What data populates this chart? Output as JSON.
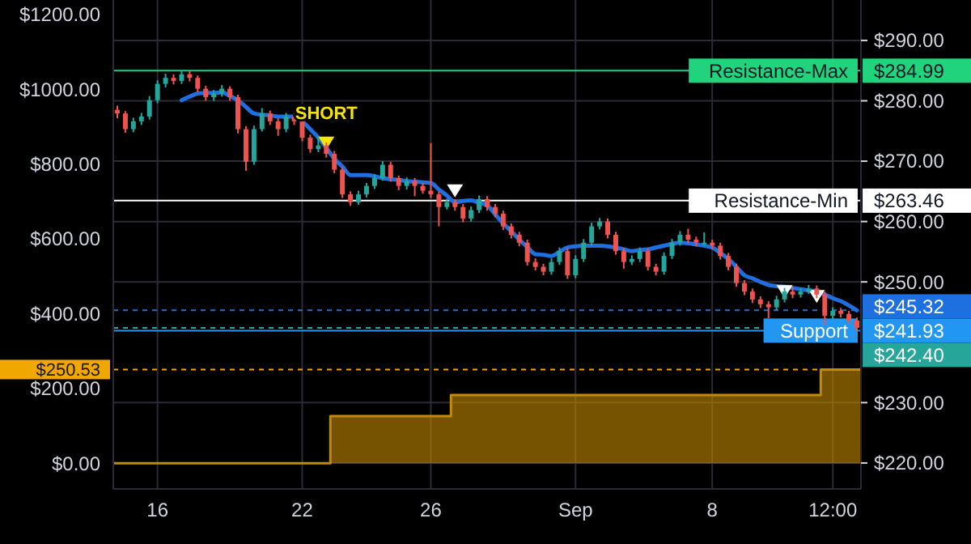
{
  "chart_data": {
    "type": "candlestick",
    "grid": true,
    "categories": [
      null,
      null,
      null,
      null,
      null,
      "16",
      null,
      null,
      null,
      null,
      null,
      null,
      null,
      null,
      null,
      null,
      null,
      null,
      null,
      null,
      null,
      null,
      null,
      "22",
      null,
      null,
      null,
      null,
      null,
      null,
      null,
      null,
      null,
      null,
      null,
      null,
      null,
      null,
      null,
      "26",
      null,
      null,
      null,
      null,
      null,
      null,
      null,
      null,
      null,
      null,
      null,
      null,
      null,
      null,
      null,
      null,
      null,
      "Sep",
      null,
      null,
      null,
      null,
      null,
      null,
      null,
      null,
      null,
      null,
      null,
      null,
      null,
      null,
      null,
      null,
      "8",
      null,
      null,
      null,
      null,
      null,
      null,
      null,
      null,
      null,
      null,
      null,
      null,
      null,
      null,
      "12:00",
      null,
      null,
      null
    ],
    "ylim": [
      215.7,
      296.7
    ],
    "yticks": [
      {
        "value": 220,
        "label": "$220.00"
      },
      {
        "value": 230,
        "label": "$230.00"
      },
      {
        "value": 250,
        "label": "$250.00"
      },
      {
        "value": 260,
        "label": "$260.00"
      },
      {
        "value": 270,
        "label": "$270.00"
      },
      {
        "value": 280,
        "label": "$280.00"
      },
      {
        "value": 290,
        "label": "$290.00"
      },
      {
        "value": 284.99,
        "label": "$284.99"
      },
      {
        "value": 263.46,
        "label": "$263.46"
      },
      {
        "value": 241.93,
        "label": "$241.93"
      }
    ],
    "y2lim": [
      -69,
      1239
    ],
    "y2ticks": [
      {
        "value": 0,
        "label": "$0.00"
      },
      {
        "value": 200,
        "label": "$200.00"
      },
      {
        "value": 400,
        "label": "$400.00"
      },
      {
        "value": 600,
        "label": "$600.00"
      },
      {
        "value": 800,
        "label": "$800.00"
      },
      {
        "value": 1000,
        "label": "$1000.00"
      },
      {
        "value": 1200,
        "label": "$1200.00"
      },
      {
        "value": 250.53,
        "label": "$250.53"
      }
    ],
    "ref_lines": [
      {
        "axis": "y",
        "value": 284.99,
        "label": "Resistance-Max",
        "color": "#22d37d"
      },
      {
        "axis": "y",
        "value": 263.46,
        "label": "Resistance-Min",
        "color": "#ffffff"
      },
      {
        "axis": "y",
        "value": 245.32,
        "label": "$245.32",
        "color": "#1e6fe0",
        "line_style": "dashed"
      },
      {
        "axis": "y",
        "value": 242.4,
        "label": "$242.40",
        "color": "#26a69a",
        "line_style": "dashed"
      },
      {
        "axis": "y",
        "value": 241.93,
        "label": "Support",
        "color": "#2196f3"
      },
      {
        "axis": "y2",
        "value": 250.53,
        "color": "#f0a800",
        "line_style": "dashed"
      }
    ],
    "annotations": [
      "SHORT"
    ],
    "series": [
      {
        "type": "step",
        "axis": "y2",
        "color": "#c48a00",
        "values": [
          0,
          0,
          0,
          0,
          0,
          0,
          0,
          0,
          0,
          0,
          0,
          0,
          0,
          0,
          0,
          0,
          0,
          0,
          0,
          0,
          0,
          0,
          0,
          0,
          0,
          0,
          0,
          126,
          126,
          126,
          126,
          126,
          126,
          126,
          126,
          126,
          126,
          126,
          126,
          126,
          126,
          126,
          182,
          182,
          182,
          182,
          182,
          182,
          182,
          182,
          182,
          182,
          182,
          182,
          182,
          182,
          182,
          182,
          182,
          182,
          182,
          182,
          182,
          182,
          182,
          182,
          182,
          182,
          182,
          182,
          182,
          182,
          182,
          182,
          182,
          182,
          182,
          182,
          182,
          182,
          182,
          182,
          182,
          182,
          182,
          182,
          182,
          182,
          250.53,
          250.53,
          250.53,
          250.53,
          250.53
        ]
      },
      {
        "ohlc": [
          [
            278.5,
            279.2,
            277.1,
            277.9
          ],
          [
            277.9,
            278.3,
            274.7,
            275.3
          ],
          [
            275.3,
            277.2,
            274.8,
            276.6
          ],
          [
            276.6,
            278.0,
            276.0,
            277.4
          ],
          [
            277.4,
            280.8,
            276.9,
            280.1
          ],
          [
            280.1,
            283.4,
            279.6,
            282.8
          ],
          [
            282.8,
            284.5,
            282.2,
            283.8
          ],
          [
            283.8,
            284.4,
            282.7,
            283.3
          ],
          [
            283.3,
            285.0,
            282.8,
            284.4
          ],
          [
            284.4,
            284.9,
            283.2,
            283.8
          ],
          [
            283.8,
            284.2,
            281.4,
            282.0
          ],
          [
            282.0,
            282.5,
            280.0,
            280.6
          ],
          [
            280.6,
            281.8,
            280.0,
            281.2
          ],
          [
            281.2,
            282.6,
            280.7,
            282.0
          ],
          [
            282.0,
            282.4,
            280.0,
            280.6
          ],
          [
            280.6,
            281.0,
            274.6,
            275.3
          ],
          [
            275.3,
            275.8,
            268.4,
            269.9
          ],
          [
            269.9,
            275.9,
            269.4,
            275.3
          ],
          [
            275.3,
            278.8,
            274.9,
            277.9
          ],
          [
            277.9,
            278.4,
            276.0,
            276.6
          ],
          [
            276.6,
            277.1,
            274.2,
            275.3
          ],
          [
            275.3,
            278.0,
            274.8,
            277.4
          ],
          [
            277.4,
            277.9,
            276.0,
            276.6
          ],
          [
            276.6,
            277.0,
            273.3,
            273.9
          ],
          [
            273.9,
            274.4,
            271.4,
            272.0
          ],
          [
            272.0,
            274.2,
            271.5,
            272.6
          ],
          [
            272.6,
            273.1,
            270.6,
            271.2
          ],
          [
            271.2,
            271.7,
            268.0,
            268.6
          ],
          [
            268.6,
            269.0,
            263.9,
            264.5
          ],
          [
            264.5,
            265.0,
            262.6,
            263.2
          ],
          [
            263.2,
            265.1,
            262.8,
            264.5
          ],
          [
            264.5,
            266.4,
            264.0,
            265.9
          ],
          [
            265.9,
            267.8,
            265.4,
            267.2
          ],
          [
            267.2,
            270.0,
            266.8,
            269.4
          ],
          [
            269.4,
            269.9,
            266.6,
            267.2
          ],
          [
            267.2,
            267.6,
            265.2,
            265.9
          ],
          [
            265.9,
            267.3,
            265.3,
            266.7
          ],
          [
            266.7,
            267.2,
            264.2,
            265.9
          ],
          [
            265.9,
            266.4,
            264.6,
            265.1
          ],
          [
            265.1,
            273.0,
            263.9,
            264.5
          ],
          [
            264.5,
            265.0,
            259.2,
            262.4
          ],
          [
            262.4,
            263.8,
            262.0,
            263.2
          ],
          [
            263.2,
            263.7,
            261.8,
            262.4
          ],
          [
            262.4,
            262.9,
            259.9,
            260.5
          ],
          [
            260.5,
            262.5,
            260.0,
            261.9
          ],
          [
            261.9,
            264.3,
            261.4,
            263.7
          ],
          [
            263.7,
            264.2,
            261.8,
            262.4
          ],
          [
            262.4,
            262.9,
            260.7,
            261.3
          ],
          [
            261.3,
            261.8,
            258.6,
            259.2
          ],
          [
            259.2,
            259.7,
            257.2,
            257.8
          ],
          [
            257.8,
            258.3,
            255.9,
            256.5
          ],
          [
            256.5,
            257.0,
            252.7,
            253.3
          ],
          [
            253.3,
            253.9,
            251.9,
            252.5
          ],
          [
            252.5,
            253.0,
            251.1,
            251.7
          ],
          [
            251.7,
            253.9,
            251.2,
            253.3
          ],
          [
            253.3,
            255.7,
            252.8,
            255.1
          ],
          [
            255.1,
            255.6,
            250.5,
            251.1
          ],
          [
            251.1,
            254.4,
            250.6,
            253.8
          ],
          [
            253.8,
            257.1,
            253.3,
            256.5
          ],
          [
            256.5,
            259.8,
            256.0,
            259.2
          ],
          [
            259.2,
            260.6,
            258.7,
            260.0
          ],
          [
            260.0,
            260.5,
            257.2,
            257.8
          ],
          [
            257.8,
            258.3,
            254.5,
            255.1
          ],
          [
            255.1,
            255.6,
            252.2,
            253.3
          ],
          [
            253.3,
            254.4,
            252.8,
            253.8
          ],
          [
            253.8,
            255.7,
            253.3,
            255.1
          ],
          [
            255.1,
            255.6,
            251.9,
            252.5
          ],
          [
            252.5,
            253.0,
            251.1,
            251.7
          ],
          [
            251.7,
            254.9,
            251.2,
            254.3
          ],
          [
            254.3,
            257.1,
            253.8,
            256.5
          ],
          [
            256.5,
            258.4,
            256.0,
            257.8
          ],
          [
            257.8,
            258.8,
            256.4,
            257.0
          ],
          [
            257.0,
            257.5,
            255.9,
            256.5
          ],
          [
            256.5,
            258.2,
            255.9,
            256.5
          ],
          [
            256.5,
            257.0,
            255.4,
            256.0
          ],
          [
            256.0,
            256.5,
            253.7,
            254.3
          ],
          [
            254.3,
            254.8,
            251.9,
            252.5
          ],
          [
            252.5,
            253.0,
            249.2,
            249.8
          ],
          [
            249.8,
            250.3,
            247.8,
            248.4
          ],
          [
            248.4,
            248.9,
            246.5,
            247.1
          ],
          [
            247.1,
            247.6,
            245.7,
            246.3
          ],
          [
            246.3,
            246.8,
            244.0,
            245.8
          ],
          [
            245.8,
            247.7,
            245.3,
            247.1
          ],
          [
            247.1,
            249.0,
            246.6,
            248.4
          ],
          [
            248.4,
            249.2,
            247.3,
            247.9
          ],
          [
            247.9,
            249.0,
            247.4,
            248.4
          ],
          [
            248.4,
            249.5,
            248.0,
            248.9
          ],
          [
            248.9,
            249.4,
            247.3,
            247.9
          ],
          [
            247.9,
            248.4,
            242.9,
            244.4
          ],
          [
            244.4,
            245.8,
            243.8,
            245.2
          ],
          [
            245.2,
            245.7,
            244.1,
            244.7
          ],
          [
            244.7,
            245.2,
            243.0,
            243.6
          ],
          [
            243.6,
            244.1,
            241.8,
            242.4
          ]
        ]
      },
      {
        "type": "line",
        "color": "#1e6fe0",
        "values": [
          null,
          null,
          null,
          null,
          null,
          null,
          null,
          null,
          280.1,
          280.7,
          281.2,
          281.3,
          281.3,
          281.4,
          280.8,
          280.1,
          279.0,
          277.9,
          277.7,
          277.6,
          277.4,
          277.4,
          277.4,
          276.6,
          275.3,
          273.9,
          272.2,
          270.4,
          269.1,
          267.7,
          267.7,
          267.7,
          267.5,
          267.2,
          267.0,
          266.9,
          266.7,
          266.6,
          266.5,
          266.4,
          265.3,
          264.3,
          263.2,
          263.4,
          263.5,
          263.1,
          262.7,
          261.2,
          259.7,
          258.4,
          257.0,
          255.8,
          254.6,
          254.5,
          254.3,
          255.0,
          255.7,
          255.9,
          256.0,
          256.0,
          256.0,
          255.9,
          255.7,
          255.4,
          255.1,
          255.3,
          255.4,
          255.7,
          256.0,
          256.3,
          256.5,
          256.4,
          256.2,
          256.0,
          255.7,
          254.8,
          253.8,
          252.5,
          251.1,
          250.6,
          250.0,
          249.5,
          249.3,
          249.2,
          249.0,
          248.8,
          248.6,
          248.4,
          247.9,
          247.3,
          246.8,
          246.1,
          245.3
        ]
      },
      {
        "type": "scatter",
        "color": "#f5e400",
        "marker": "triangle",
        "values": [
          null,
          null,
          null,
          null,
          null,
          null,
          null,
          null,
          null,
          null,
          null,
          null,
          null,
          null,
          null,
          null,
          null,
          null,
          null,
          null,
          null,
          null,
          null,
          null,
          null,
          null,
          273.0,
          null,
          null,
          null,
          null,
          null,
          null,
          null,
          null,
          null,
          null,
          null,
          null,
          null,
          null,
          null,
          null,
          null,
          null,
          null,
          null,
          null,
          null,
          null,
          null,
          null,
          null,
          null,
          null,
          null,
          null,
          null,
          null,
          null,
          null,
          null,
          null,
          null,
          null,
          null,
          null,
          null,
          null,
          null,
          null,
          null,
          null,
          null,
          null,
          null,
          null,
          null,
          null,
          null,
          null,
          null,
          null,
          null,
          null,
          null,
          null,
          null,
          null,
          null,
          null,
          null,
          null
        ]
      },
      {
        "type": "scatter",
        "color": "#ffffff",
        "marker": "triangle",
        "values": [
          null,
          null,
          null,
          null,
          null,
          null,
          null,
          null,
          null,
          null,
          null,
          null,
          null,
          null,
          null,
          null,
          null,
          null,
          null,
          null,
          null,
          null,
          null,
          null,
          null,
          null,
          null,
          null,
          null,
          null,
          null,
          null,
          null,
          null,
          null,
          null,
          null,
          null,
          null,
          null,
          null,
          null,
          265.1,
          null,
          null,
          null,
          null,
          null,
          null,
          null,
          null,
          null,
          null,
          null,
          null,
          null,
          null,
          null,
          null,
          null,
          null,
          null,
          null,
          null,
          null,
          null,
          null,
          null,
          null,
          null,
          null,
          null,
          null,
          null,
          null,
          null,
          null,
          null,
          null,
          null,
          null,
          null,
          null,
          248.4,
          null,
          null,
          null,
          247.6,
          null,
          null,
          null,
          null,
          null
        ]
      }
    ]
  }
}
